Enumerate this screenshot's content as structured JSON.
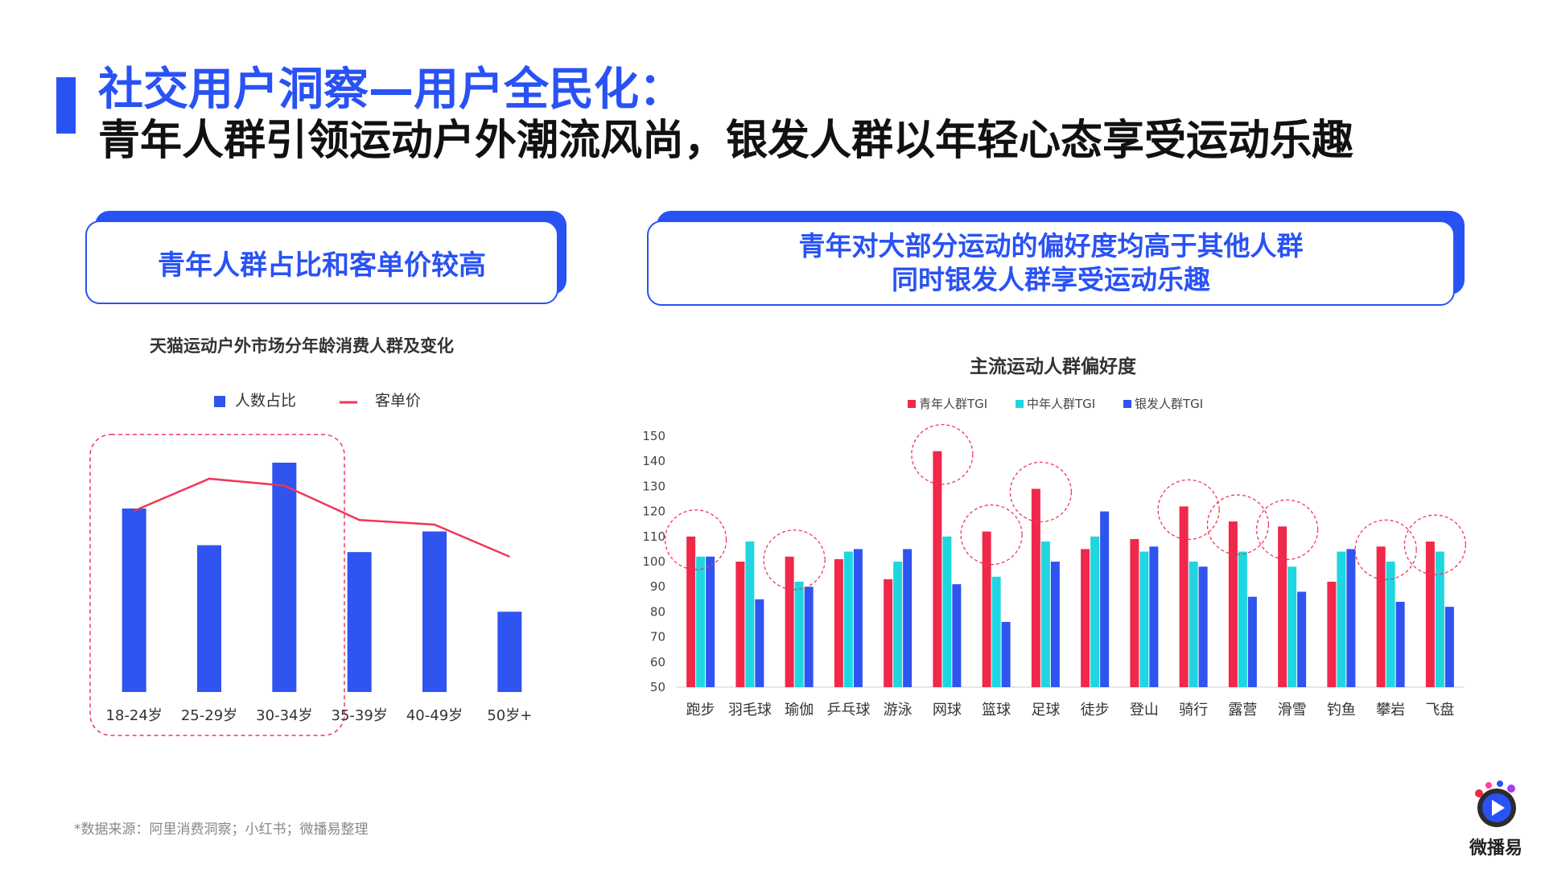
{
  "header": {
    "title_line1": "社交用户洞察—用户全民化：",
    "title_line2": "青年人群引领运动户外潮流风尚，银发人群以年轻心态享受运动乐趣"
  },
  "left_callout": {
    "text": "青年人群占比和客单价较高"
  },
  "right_callout": {
    "line1": "青年对大部分运动的偏好度均高于其他人群",
    "line2": "同时银发人群享受运动乐趣"
  },
  "colors": {
    "accent": "#2952f5",
    "red": "#f0284a",
    "cyan": "#1fd6e0",
    "blue": "#2f54f0",
    "line": "#f0365a"
  },
  "source": "*数据来源：阿里消费洞察；小红书；微播易整理",
  "logo": {
    "text": "微播易"
  },
  "chart_data": [
    {
      "type": "bar",
      "title": "天猫运动户外市场分年龄消费人群及变化",
      "categories": [
        "18-24岁",
        "25-29岁",
        "30-34岁",
        "35-39岁",
        "40-49岁",
        "50岁+"
      ],
      "series": [
        {
          "name": "人数占比",
          "type": "bar",
          "values": [
            0.8,
            0.64,
            1.0,
            0.61,
            0.7,
            0.35
          ]
        },
        {
          "name": "客单价",
          "type": "line",
          "values": [
            0.79,
            0.93,
            0.9,
            0.75,
            0.73,
            0.59
          ]
        }
      ],
      "note": "no y-axis printed; values are relative levels (tallest bar = 1.0)",
      "highlight": [
        "18-24岁",
        "25-29岁",
        "30-34岁"
      ],
      "legend": "top-center",
      "grid": false
    },
    {
      "type": "bar",
      "title": "主流运动人群偏好度",
      "categories": [
        "跑步",
        "羽毛球",
        "瑜伽",
        "乒乓球",
        "游泳",
        "网球",
        "篮球",
        "足球",
        "徒步",
        "登山",
        "骑行",
        "露营",
        "滑雪",
        "钓鱼",
        "攀岩",
        "飞盘"
      ],
      "series": [
        {
          "name": "青年人群TGI",
          "values": [
            110,
            100,
            102,
            101,
            93,
            144,
            112,
            129,
            105,
            109,
            122,
            116,
            114,
            92,
            106,
            108
          ]
        },
        {
          "name": "中年人群TGI",
          "values": [
            102,
            108,
            92,
            104,
            100,
            110,
            94,
            108,
            110,
            104,
            100,
            104,
            98,
            104,
            100,
            104
          ]
        },
        {
          "name": "银发人群TGI",
          "values": [
            102,
            85,
            90,
            105,
            105,
            91,
            76,
            100,
            120,
            106,
            98,
            86,
            88,
            105,
            84,
            82
          ]
        }
      ],
      "yticks": [
        50,
        60,
        70,
        80,
        90,
        100,
        110,
        120,
        130,
        140,
        150
      ],
      "ylim": [
        50,
        150
      ],
      "highlight": [
        "跑步",
        "瑜伽",
        "网球",
        "篮球",
        "足球",
        "骑行",
        "露营",
        "滑雪",
        "攀岩",
        "飞盘"
      ],
      "legend": "top-center",
      "grid": false
    }
  ]
}
